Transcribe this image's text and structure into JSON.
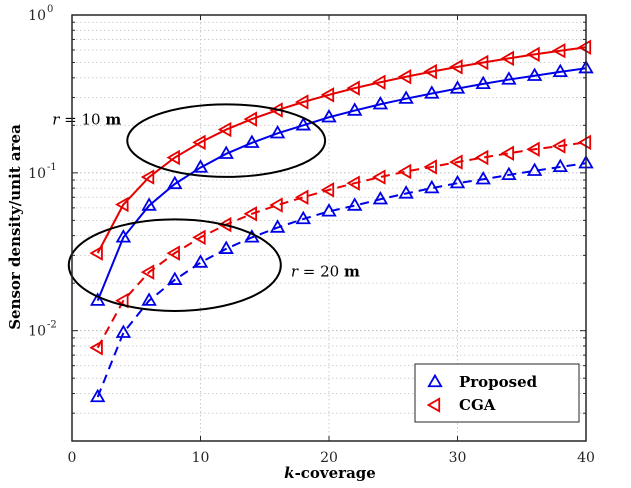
{
  "chart_data": {
    "type": "line",
    "title": "",
    "xlabel": "k-coverage",
    "xlabel_italic_part": "k",
    "xlabel_rest": "-coverage",
    "ylabel": "Sensor density/unit area",
    "xlim": [
      0,
      40
    ],
    "ylim": [
      0.002,
      1
    ],
    "y_scale": "log",
    "grid": true,
    "x_ticks": [
      0,
      10,
      20,
      30,
      40
    ],
    "x_tick_labels": [
      "0",
      "10",
      "20",
      "30",
      "40"
    ],
    "y_ticks": [
      0.01,
      0.1,
      1
    ],
    "y_tick_labels": [
      {
        "base": "10",
        "exp": "-2"
      },
      {
        "base": "10",
        "exp": "-1"
      },
      {
        "base": "10",
        "exp": "0"
      }
    ],
    "x": [
      2,
      4,
      6,
      8,
      10,
      12,
      14,
      16,
      18,
      20,
      22,
      24,
      26,
      28,
      30,
      32,
      34,
      36,
      38,
      40
    ],
    "series": [
      {
        "name": "Proposed",
        "group": "r = 10 m",
        "color": "#0000e6",
        "line_style": "solid",
        "marker": "triangle-up",
        "show_in_legend": true,
        "values": [
          0.0155,
          0.039,
          0.062,
          0.085,
          0.108,
          0.132,
          0.155,
          0.178,
          0.2,
          0.225,
          0.248,
          0.272,
          0.295,
          0.318,
          0.342,
          0.366,
          0.39,
          0.412,
          0.436,
          0.46
        ]
      },
      {
        "name": "CGA",
        "group": "r = 10 m",
        "color": "#e60000",
        "line_style": "solid",
        "marker": "triangle-left",
        "show_in_legend": true,
        "values": [
          0.031,
          0.063,
          0.094,
          0.125,
          0.156,
          0.188,
          0.219,
          0.25,
          0.281,
          0.312,
          0.344,
          0.375,
          0.406,
          0.438,
          0.469,
          0.5,
          0.531,
          0.563,
          0.594,
          0.625
        ]
      },
      {
        "name": "Proposed",
        "group": "r = 20 m",
        "color": "#0000e6",
        "line_style": "dashed",
        "marker": "triangle-up",
        "show_in_legend": false,
        "values": [
          0.0038,
          0.0097,
          0.0155,
          0.021,
          0.027,
          0.033,
          0.039,
          0.045,
          0.051,
          0.057,
          0.062,
          0.068,
          0.074,
          0.08,
          0.086,
          0.091,
          0.097,
          0.103,
          0.109,
          0.115
        ]
      },
      {
        "name": "CGA",
        "group": "r = 20 m",
        "color": "#e60000",
        "line_style": "dashed",
        "marker": "triangle-left",
        "show_in_legend": false,
        "values": [
          0.0078,
          0.0155,
          0.0235,
          0.031,
          0.039,
          0.047,
          0.055,
          0.0625,
          0.07,
          0.078,
          0.086,
          0.094,
          0.102,
          0.109,
          0.117,
          0.125,
          0.133,
          0.141,
          0.148,
          0.156
        ]
      }
    ],
    "legend": {
      "placement": "bottom-right",
      "entries": [
        {
          "label": "Proposed",
          "color": "#0000e6",
          "marker": "triangle-up"
        },
        {
          "label": "CGA",
          "color": "#e60000",
          "marker": "triangle-left"
        }
      ]
    },
    "annotations": [
      {
        "id": "r10",
        "var": "r",
        "equals": " = 10 ",
        "unit": "m",
        "ellipse_center": [
          12,
          0.16
        ],
        "ellipse_k_span": 0.7,
        "ellipse_log_span": 0.23
      },
      {
        "id": "r20",
        "var": "r",
        "equals": " = 20 ",
        "unit": "m",
        "ellipse_center": [
          8,
          0.026
        ],
        "ellipse_k_span": 0.75,
        "ellipse_log_span": 0.29
      }
    ]
  }
}
